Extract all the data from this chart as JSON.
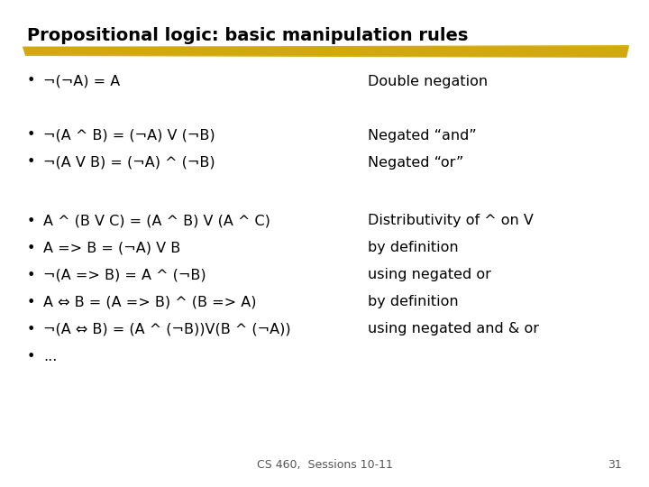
{
  "title": "Propositional logic: basic manipulation rules",
  "background_color": "#ffffff",
  "title_fontsize": 14,
  "title_font": "DejaVu Sans",
  "body_fontsize": 11.5,
  "body_font": "DejaVu Sans",
  "footer_text": "CS 460,  Sessions 10-11",
  "footer_number": "31",
  "highlight_color": "#D4A800",
  "bullet_items": [
    {
      "formula": "¬(¬A) = A",
      "label": "Double negation",
      "group": 1
    },
    {
      "formula": "¬(A ^ B) = (¬A) V (¬B)",
      "label": "Negated “and”",
      "group": 2
    },
    {
      "formula": "¬(A V B) = (¬A) ^ (¬B)",
      "label": "Negated “or”",
      "group": 2
    },
    {
      "formula": "A ^ (B V C) = (A ^ B) V (A ^ C)",
      "label": "Distributivity of ^ on V",
      "group": 3
    },
    {
      "formula": "A => B = (¬A) V B",
      "label": "by definition",
      "group": 3
    },
    {
      "formula": "¬(A => B) = A ^ (¬B)",
      "label": "using negated or",
      "group": 3
    },
    {
      "formula": "A ⇔ B = (A => B) ^ (B => A)",
      "label": "by definition",
      "group": 3
    },
    {
      "formula": "¬(A ⇔ B) = (A ^ (¬B))V(B ^ (¬A))",
      "label": "using negated and & or",
      "group": 3
    },
    {
      "formula": "...",
      "label": "",
      "group": 3
    }
  ]
}
